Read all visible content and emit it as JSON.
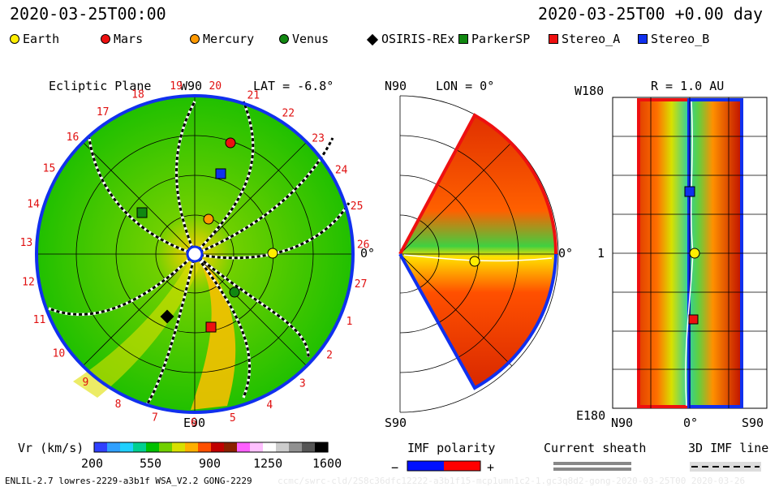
{
  "header": {
    "date_left": "2020-03-25T00:00",
    "date_right": "2020-03-25T00 +0.00 day"
  },
  "legend": [
    {
      "label": "Earth",
      "color": "#ffee00",
      "shape": "circle"
    },
    {
      "label": "Mars",
      "color": "#ee1010",
      "shape": "circle"
    },
    {
      "label": "Mercury",
      "color": "#ff9900",
      "shape": "circle"
    },
    {
      "label": "Venus",
      "color": "#118811",
      "shape": "circle"
    },
    {
      "label": "OSIRIS-REx",
      "color": "#000000",
      "shape": "diamond"
    },
    {
      "label": "ParkerSP",
      "color": "#118811",
      "shape": "square"
    },
    {
      "label": "Stereo_A",
      "color": "#ee1010",
      "shape": "square"
    },
    {
      "label": "Stereo_B",
      "color": "#1030ee",
      "shape": "square"
    }
  ],
  "panels": {
    "ecliptic": {
      "title": "Ecliptic Plane",
      "top": "W90",
      "bottom": "E90",
      "right": "0°",
      "lat": "LAT = -6.8°",
      "carrington": [
        "20",
        "21",
        "22",
        "23",
        "24",
        "25",
        "26",
        "27",
        "1",
        "2",
        "3",
        "4",
        "5",
        "6",
        "7",
        "8",
        "9",
        "10",
        "11",
        "12",
        "13",
        "14",
        "15",
        "16",
        "17",
        "18",
        "19"
      ]
    },
    "meridional": {
      "top": "N90",
      "bottom": "S90",
      "right": "0°",
      "lon": "LON = 0°"
    },
    "sphere": {
      "title": "R = 1.0 AU",
      "left_top": "W180",
      "left_mid": "1",
      "left_bottom": "E180",
      "bottom_left": "N90",
      "bottom_mid": "0°",
      "bottom_right": "S90"
    }
  },
  "colorbar": {
    "label": "Vr (km/s)",
    "ticks": [
      "200",
      "550",
      "900",
      "1250",
      "1600"
    ],
    "colors": [
      "#3040ff",
      "#30a0ff",
      "#20d0ff",
      "#00d090",
      "#00c000",
      "#70d000",
      "#d8e000",
      "#ffb000",
      "#ff5000",
      "#c00000",
      "#8b2000",
      "#ff60ff",
      "#ffc0ff",
      "#ffffff",
      "#cccccc",
      "#909090",
      "#555555",
      "#000000"
    ]
  },
  "imf": {
    "label": "IMF polarity",
    "minus": "−",
    "plus": "+",
    "neg_color": "#0010ff",
    "pos_color": "#ff0000"
  },
  "sheath": {
    "label": "Current sheath"
  },
  "imf3d": {
    "label": "3D IMF line"
  },
  "footer": {
    "left": "ENLIL-2.7 lowres-2229-a3b1f WSA_V2.2 GONG-2229",
    "right": "ccmc/swrc-cld/2S8c36dfc12222-a3b1f15-mcp1umn1c2-1.gc3q8d2-gong-2020-03-25T00  2020-03-26"
  },
  "chart_data": {
    "type": "heatmap",
    "title": "Ecliptic Plane",
    "quantity": "Vr (km/s)",
    "vr_range": [
      200,
      1600
    ],
    "ecliptic_lat_deg": -6.8,
    "meridional_lon_deg": 0,
    "sphere_radius_au": 1.0,
    "colorbar_ticks": [
      200,
      550,
      900,
      1250,
      1600
    ]
  }
}
